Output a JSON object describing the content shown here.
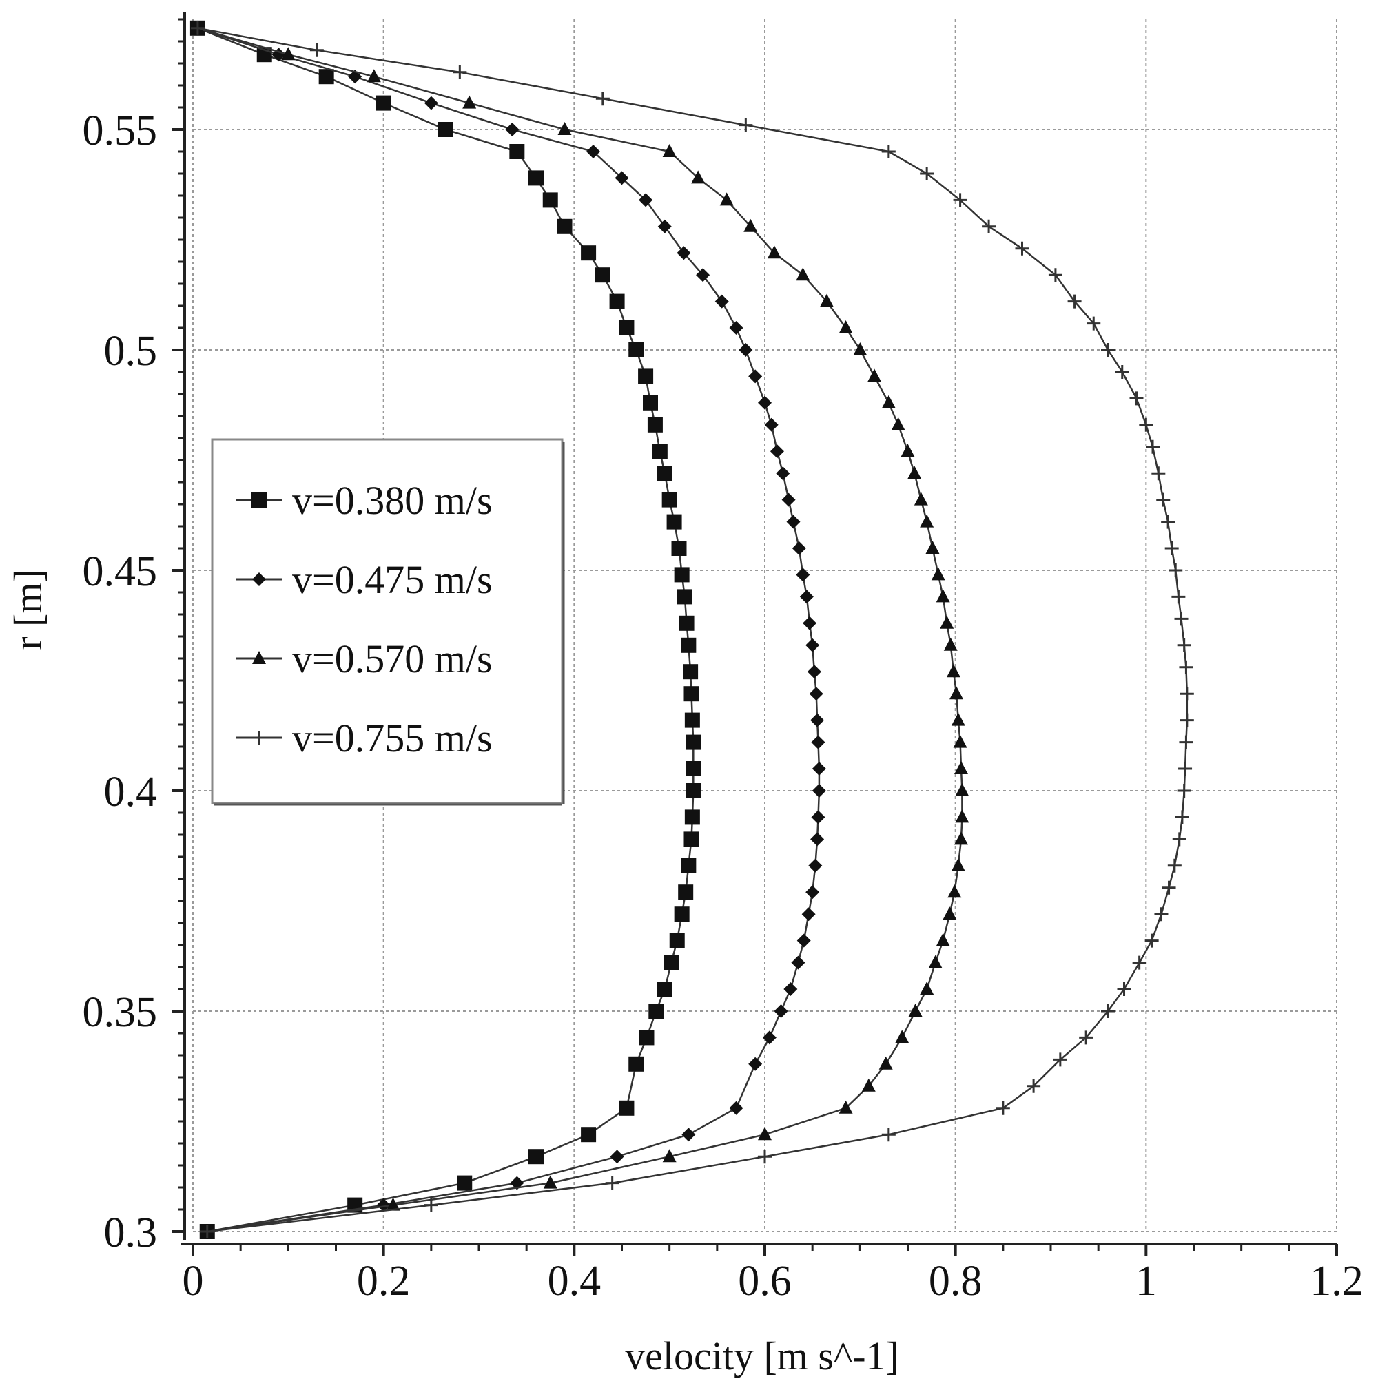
{
  "chart_data": {
    "type": "line",
    "xlabel": "velocity [m s^-1]",
    "ylabel": "r [m]",
    "xlim": [
      0,
      1.2
    ],
    "ylim": [
      0.3,
      0.575
    ],
    "xticks": [
      "0",
      "0.2",
      "0.4",
      "0.6",
      "0.8",
      "1",
      "1.2"
    ],
    "yticks": [
      "0.3",
      "0.35",
      "0.4",
      "0.45",
      "0.5",
      "0.55"
    ],
    "grid": true,
    "legend_position": "left",
    "series": [
      {
        "name": "v=0.380 m/s",
        "marker": "square",
        "points": [
          [
            0.005,
            0.573
          ],
          [
            0.075,
            0.567
          ],
          [
            0.14,
            0.562
          ],
          [
            0.2,
            0.556
          ],
          [
            0.265,
            0.55
          ],
          [
            0.34,
            0.545
          ],
          [
            0.36,
            0.539
          ],
          [
            0.375,
            0.534
          ],
          [
            0.39,
            0.528
          ],
          [
            0.415,
            0.522
          ],
          [
            0.43,
            0.517
          ],
          [
            0.445,
            0.511
          ],
          [
            0.455,
            0.505
          ],
          [
            0.465,
            0.5
          ],
          [
            0.475,
            0.494
          ],
          [
            0.48,
            0.488
          ],
          [
            0.485,
            0.483
          ],
          [
            0.49,
            0.477
          ],
          [
            0.495,
            0.472
          ],
          [
            0.5,
            0.466
          ],
          [
            0.505,
            0.461
          ],
          [
            0.51,
            0.455
          ],
          [
            0.513,
            0.449
          ],
          [
            0.516,
            0.444
          ],
          [
            0.518,
            0.438
          ],
          [
            0.52,
            0.433
          ],
          [
            0.522,
            0.427
          ],
          [
            0.523,
            0.422
          ],
          [
            0.524,
            0.416
          ],
          [
            0.525,
            0.411
          ],
          [
            0.525,
            0.405
          ],
          [
            0.525,
            0.4
          ],
          [
            0.524,
            0.394
          ],
          [
            0.523,
            0.389
          ],
          [
            0.52,
            0.383
          ],
          [
            0.517,
            0.377
          ],
          [
            0.513,
            0.372
          ],
          [
            0.508,
            0.366
          ],
          [
            0.502,
            0.361
          ],
          [
            0.495,
            0.355
          ],
          [
            0.486,
            0.35
          ],
          [
            0.476,
            0.344
          ],
          [
            0.465,
            0.338
          ],
          [
            0.455,
            0.328
          ],
          [
            0.415,
            0.322
          ],
          [
            0.36,
            0.317
          ],
          [
            0.285,
            0.311
          ],
          [
            0.17,
            0.306
          ],
          [
            0.015,
            0.3
          ]
        ]
      },
      {
        "name": "v=0.475 m/s",
        "marker": "diamond",
        "points": [
          [
            0.005,
            0.573
          ],
          [
            0.09,
            0.567
          ],
          [
            0.17,
            0.562
          ],
          [
            0.25,
            0.556
          ],
          [
            0.335,
            0.55
          ],
          [
            0.42,
            0.545
          ],
          [
            0.45,
            0.539
          ],
          [
            0.475,
            0.534
          ],
          [
            0.495,
            0.528
          ],
          [
            0.515,
            0.522
          ],
          [
            0.535,
            0.517
          ],
          [
            0.555,
            0.511
          ],
          [
            0.57,
            0.505
          ],
          [
            0.58,
            0.5
          ],
          [
            0.59,
            0.494
          ],
          [
            0.6,
            0.488
          ],
          [
            0.607,
            0.483
          ],
          [
            0.613,
            0.477
          ],
          [
            0.619,
            0.472
          ],
          [
            0.625,
            0.466
          ],
          [
            0.63,
            0.461
          ],
          [
            0.636,
            0.455
          ],
          [
            0.64,
            0.449
          ],
          [
            0.644,
            0.444
          ],
          [
            0.647,
            0.438
          ],
          [
            0.65,
            0.433
          ],
          [
            0.652,
            0.427
          ],
          [
            0.654,
            0.422
          ],
          [
            0.655,
            0.416
          ],
          [
            0.656,
            0.411
          ],
          [
            0.657,
            0.405
          ],
          [
            0.657,
            0.4
          ],
          [
            0.656,
            0.394
          ],
          [
            0.655,
            0.389
          ],
          [
            0.653,
            0.383
          ],
          [
            0.65,
            0.377
          ],
          [
            0.646,
            0.372
          ],
          [
            0.641,
            0.366
          ],
          [
            0.635,
            0.361
          ],
          [
            0.627,
            0.355
          ],
          [
            0.617,
            0.35
          ],
          [
            0.605,
            0.344
          ],
          [
            0.59,
            0.338
          ],
          [
            0.57,
            0.328
          ],
          [
            0.52,
            0.322
          ],
          [
            0.445,
            0.317
          ],
          [
            0.34,
            0.311
          ],
          [
            0.2,
            0.306
          ],
          [
            0.015,
            0.3
          ]
        ]
      },
      {
        "name": "v=0.570 m/s",
        "marker": "triangle",
        "points": [
          [
            0.005,
            0.573
          ],
          [
            0.1,
            0.567
          ],
          [
            0.19,
            0.562
          ],
          [
            0.29,
            0.556
          ],
          [
            0.39,
            0.55
          ],
          [
            0.5,
            0.545
          ],
          [
            0.53,
            0.539
          ],
          [
            0.56,
            0.534
          ],
          [
            0.585,
            0.528
          ],
          [
            0.61,
            0.522
          ],
          [
            0.64,
            0.517
          ],
          [
            0.665,
            0.511
          ],
          [
            0.685,
            0.505
          ],
          [
            0.7,
            0.5
          ],
          [
            0.715,
            0.494
          ],
          [
            0.73,
            0.488
          ],
          [
            0.74,
            0.483
          ],
          [
            0.75,
            0.477
          ],
          [
            0.757,
            0.472
          ],
          [
            0.764,
            0.466
          ],
          [
            0.77,
            0.461
          ],
          [
            0.776,
            0.455
          ],
          [
            0.782,
            0.449
          ],
          [
            0.787,
            0.444
          ],
          [
            0.791,
            0.438
          ],
          [
            0.795,
            0.433
          ],
          [
            0.798,
            0.427
          ],
          [
            0.801,
            0.422
          ],
          [
            0.803,
            0.416
          ],
          [
            0.805,
            0.411
          ],
          [
            0.806,
            0.405
          ],
          [
            0.807,
            0.4
          ],
          [
            0.807,
            0.394
          ],
          [
            0.806,
            0.389
          ],
          [
            0.803,
            0.383
          ],
          [
            0.799,
            0.377
          ],
          [
            0.794,
            0.372
          ],
          [
            0.787,
            0.366
          ],
          [
            0.779,
            0.361
          ],
          [
            0.77,
            0.355
          ],
          [
            0.758,
            0.35
          ],
          [
            0.744,
            0.344
          ],
          [
            0.727,
            0.338
          ],
          [
            0.709,
            0.333
          ],
          [
            0.685,
            0.328
          ],
          [
            0.6,
            0.322
          ],
          [
            0.5,
            0.317
          ],
          [
            0.375,
            0.311
          ],
          [
            0.21,
            0.306
          ],
          [
            0.015,
            0.3
          ]
        ]
      },
      {
        "name": "v=0.755 m/s",
        "marker": "plus",
        "points": [
          [
            0.005,
            0.573
          ],
          [
            0.13,
            0.568
          ],
          [
            0.28,
            0.563
          ],
          [
            0.43,
            0.557
          ],
          [
            0.58,
            0.551
          ],
          [
            0.73,
            0.545
          ],
          [
            0.77,
            0.54
          ],
          [
            0.805,
            0.534
          ],
          [
            0.835,
            0.528
          ],
          [
            0.87,
            0.523
          ],
          [
            0.905,
            0.517
          ],
          [
            0.925,
            0.511
          ],
          [
            0.945,
            0.506
          ],
          [
            0.96,
            0.5
          ],
          [
            0.975,
            0.495
          ],
          [
            0.99,
            0.489
          ],
          [
            1.0,
            0.483
          ],
          [
            1.007,
            0.478
          ],
          [
            1.013,
            0.472
          ],
          [
            1.018,
            0.466
          ],
          [
            1.023,
            0.461
          ],
          [
            1.027,
            0.455
          ],
          [
            1.031,
            0.45
          ],
          [
            1.034,
            0.444
          ],
          [
            1.037,
            0.439
          ],
          [
            1.04,
            0.433
          ],
          [
            1.042,
            0.428
          ],
          [
            1.043,
            0.422
          ],
          [
            1.043,
            0.416
          ],
          [
            1.042,
            0.411
          ],
          [
            1.041,
            0.405
          ],
          [
            1.04,
            0.4
          ],
          [
            1.038,
            0.394
          ],
          [
            1.035,
            0.389
          ],
          [
            1.03,
            0.383
          ],
          [
            1.024,
            0.378
          ],
          [
            1.016,
            0.372
          ],
          [
            1.006,
            0.366
          ],
          [
            0.993,
            0.361
          ],
          [
            0.977,
            0.355
          ],
          [
            0.96,
            0.35
          ],
          [
            0.937,
            0.344
          ],
          [
            0.91,
            0.339
          ],
          [
            0.882,
            0.333
          ],
          [
            0.85,
            0.328
          ],
          [
            0.73,
            0.322
          ],
          [
            0.6,
            0.317
          ],
          [
            0.44,
            0.311
          ],
          [
            0.25,
            0.306
          ],
          [
            0.015,
            0.3
          ]
        ]
      }
    ]
  }
}
